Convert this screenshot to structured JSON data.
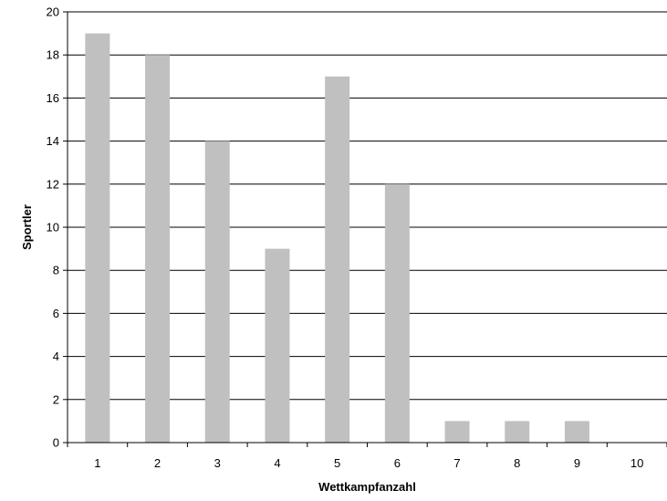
{
  "chart_data": {
    "type": "bar",
    "categories": [
      "1",
      "2",
      "3",
      "4",
      "5",
      "6",
      "7",
      "8",
      "9",
      "10"
    ],
    "values": [
      19,
      18,
      14,
      9,
      17,
      12,
      1,
      1,
      1,
      0
    ],
    "xlabel": "Wettkampfanzahl",
    "ylabel": "Sportler",
    "ylim": [
      0,
      20
    ],
    "yticks": [
      "0",
      "2",
      "4",
      "6",
      "8",
      "10",
      "12",
      "14",
      "16",
      "18",
      "20"
    ],
    "grid": true,
    "legend": "none",
    "bar_color": "#c0c0c0",
    "grid_color": "#000000"
  }
}
